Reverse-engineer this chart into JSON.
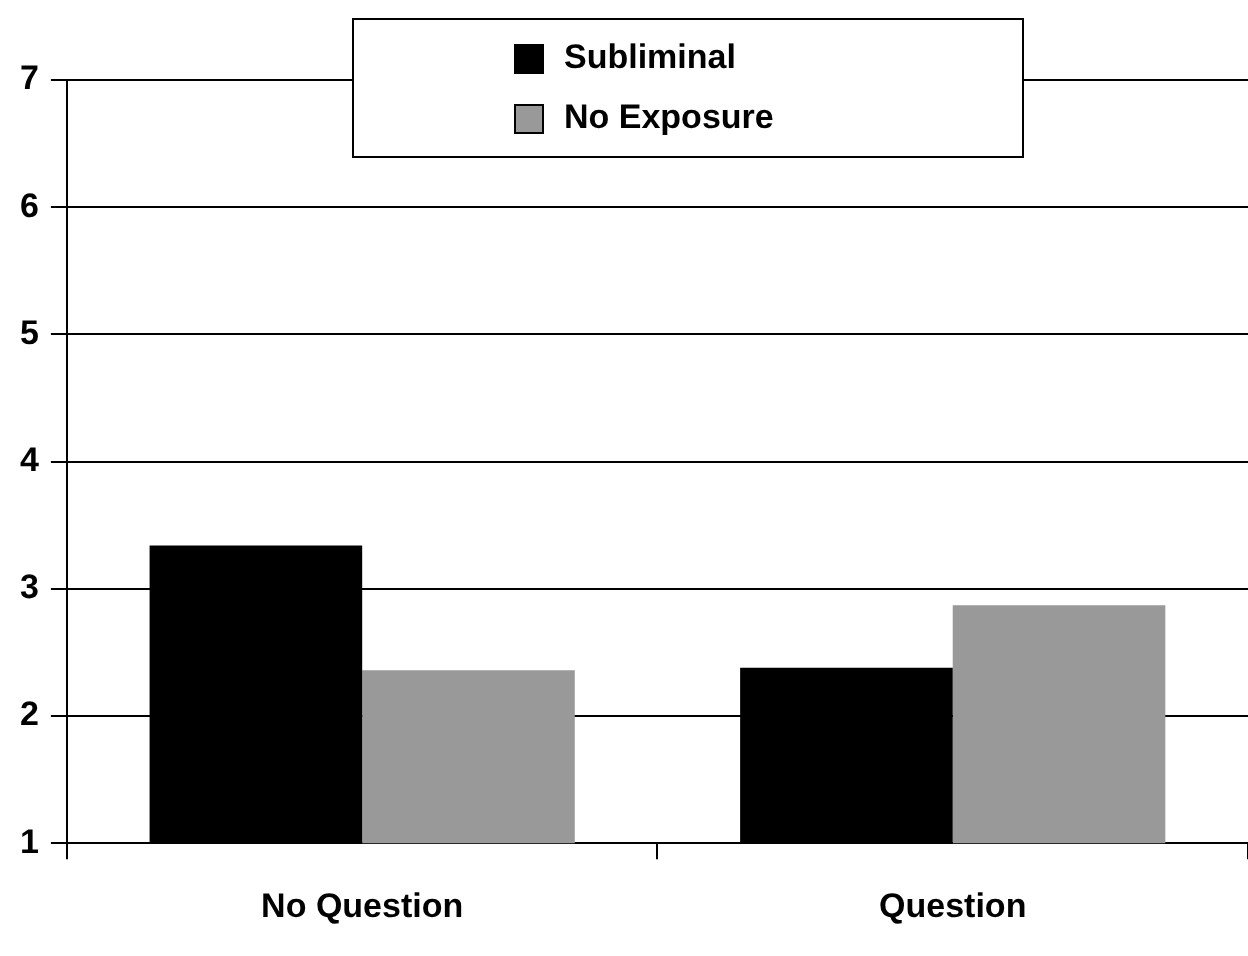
{
  "chart_data": {
    "type": "bar",
    "categories": [
      "No Question",
      "Question"
    ],
    "series": [
      {
        "name": "Subliminal",
        "color": "#000000",
        "values": [
          3.34,
          2.38
        ]
      },
      {
        "name": "No Exposure",
        "color": "#999999",
        "values": [
          2.36,
          2.87
        ]
      }
    ],
    "ylim": [
      1,
      7
    ],
    "yticks": [
      1,
      2,
      3,
      4,
      5,
      6,
      7
    ],
    "grid": "y",
    "legend": "top"
  }
}
